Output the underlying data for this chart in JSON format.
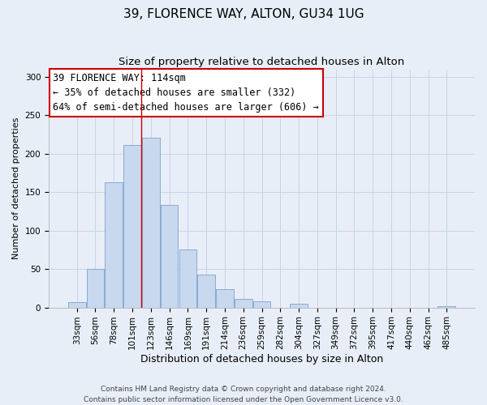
{
  "title": "39, FLORENCE WAY, ALTON, GU34 1UG",
  "subtitle": "Size of property relative to detached houses in Alton",
  "xlabel": "Distribution of detached houses by size in Alton",
  "ylabel": "Number of detached properties",
  "bar_labels": [
    "33sqm",
    "56sqm",
    "78sqm",
    "101sqm",
    "123sqm",
    "146sqm",
    "169sqm",
    "191sqm",
    "214sqm",
    "236sqm",
    "259sqm",
    "282sqm",
    "304sqm",
    "327sqm",
    "349sqm",
    "372sqm",
    "395sqm",
    "417sqm",
    "440sqm",
    "462sqm",
    "485sqm"
  ],
  "bar_values": [
    7,
    50,
    163,
    212,
    221,
    133,
    75,
    43,
    24,
    11,
    8,
    0,
    5,
    0,
    0,
    0,
    0,
    0,
    0,
    0,
    2
  ],
  "bar_color": "#c8d8ee",
  "bar_edge_color": "#88aad4",
  "annotation_box_text": "39 FLORENCE WAY: 114sqm\n← 35% of detached houses are smaller (332)\n64% of semi-detached houses are larger (606) →",
  "annotation_box_color": "#ffffff",
  "annotation_box_edge_color": "#cc0000",
  "vline_x": 3.5,
  "vline_color": "#cc0000",
  "ylim": [
    0,
    310
  ],
  "yticks": [
    0,
    50,
    100,
    150,
    200,
    250,
    300
  ],
  "grid_color": "#c8d4e8",
  "bg_color": "#e8eef8",
  "footer_text": "Contains HM Land Registry data © Crown copyright and database right 2024.\nContains public sector information licensed under the Open Government Licence v3.0.",
  "title_fontsize": 11,
  "subtitle_fontsize": 9.5,
  "xlabel_fontsize": 9,
  "ylabel_fontsize": 8,
  "tick_fontsize": 7.5,
  "annotation_fontsize": 8.5,
  "footer_fontsize": 6.5
}
